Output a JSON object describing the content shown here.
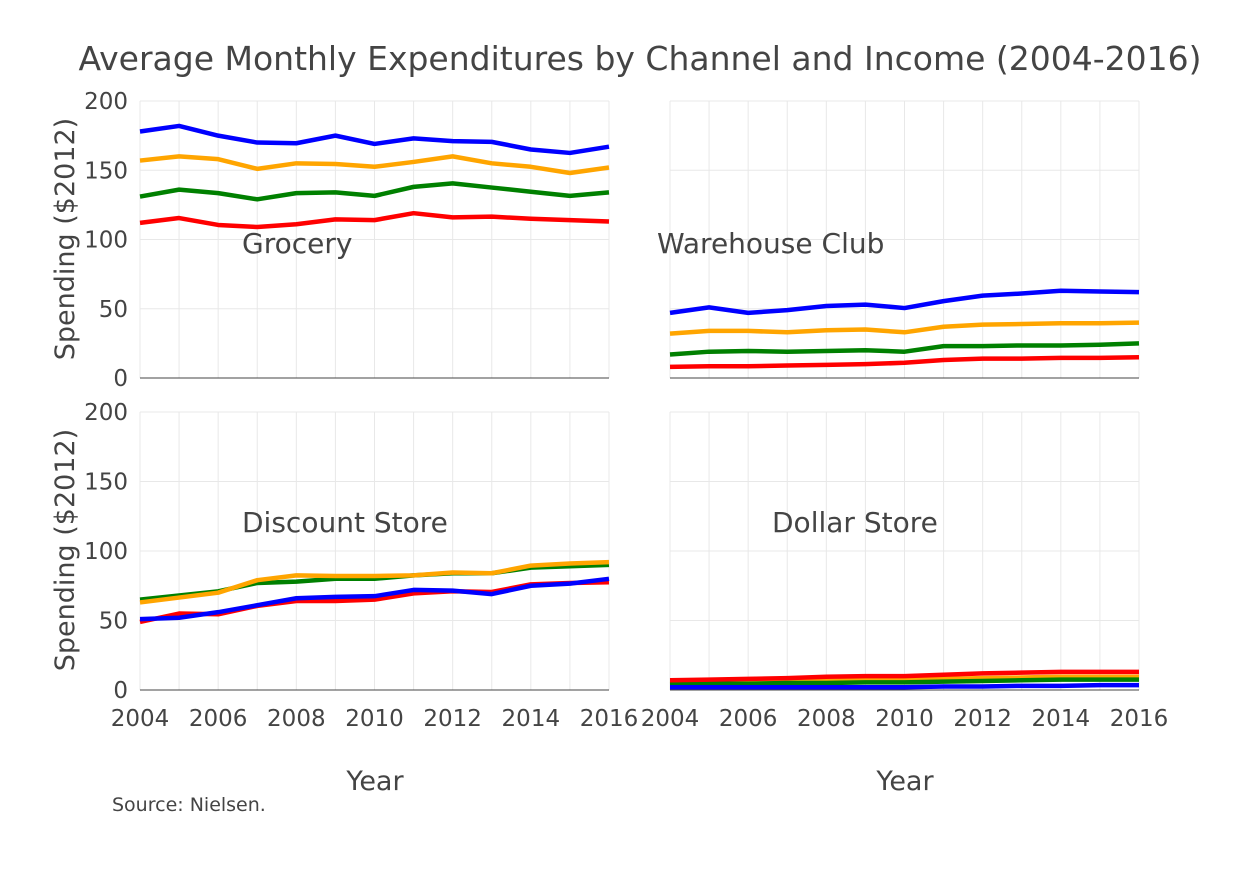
{
  "chart_data": {
    "type": "line",
    "title": "Average Monthly Expenditures by Channel and Income (2004-2016)",
    "xlabel": "Year",
    "ylabel": "Spending ($2012)",
    "source": "Source: Nielsen.",
    "x": [
      2004,
      2005,
      2006,
      2007,
      2008,
      2009,
      2010,
      2011,
      2012,
      2013,
      2014,
      2015,
      2016
    ],
    "xlim": [
      2004,
      2016
    ],
    "ylim": [
      0,
      200
    ],
    "xticks": [
      "2004",
      "2006",
      "2008",
      "2010",
      "2012",
      "2014",
      "2016"
    ],
    "yticks": [
      "0",
      "50",
      "100",
      "150",
      "200"
    ],
    "grid": true,
    "legend": false,
    "panels": [
      {
        "label": "Grocery",
        "series": [
          {
            "color": "#0000ff",
            "values": [
              178,
              182,
              175,
              170,
              169.5,
              175,
              169,
              173,
              171,
              170.5,
              165,
              162.5,
              167
            ]
          },
          {
            "color": "#ffa500",
            "values": [
              157,
              160,
              158,
              151,
              155,
              154.5,
              152.5,
              156,
              160,
              155,
              152.5,
              148,
              152
            ]
          },
          {
            "color": "#008000",
            "values": [
              131,
              136,
              133.5,
              129,
              133.5,
              134,
              131.5,
              138,
              140.5,
              137.5,
              134.5,
              131.5,
              134
            ]
          },
          {
            "color": "#ff0000",
            "values": [
              112,
              115.5,
              110.5,
              109,
              111,
              114.5,
              114,
              119,
              116,
              116.5,
              115,
              114,
              113
            ]
          }
        ]
      },
      {
        "label": "Warehouse Club",
        "series": [
          {
            "color": "#0000ff",
            "values": [
              47,
              51,
              47,
              49,
              52,
              53,
              50.5,
              55.5,
              59.5,
              61,
              63,
              62.5,
              62
            ]
          },
          {
            "color": "#ffa500",
            "values": [
              32,
              34,
              34,
              33,
              34.5,
              35,
              33,
              37,
              38.5,
              39,
              39.5,
              39.5,
              40
            ]
          },
          {
            "color": "#008000",
            "values": [
              17,
              19,
              19.5,
              19,
              19.5,
              20,
              19,
              23,
              23,
              23.5,
              23.5,
              24,
              25
            ]
          },
          {
            "color": "#ff0000",
            "values": [
              8,
              8.5,
              8.5,
              9,
              9.5,
              10,
              11,
              13,
              14,
              14,
              14.5,
              14.5,
              15
            ]
          }
        ]
      },
      {
        "label": "Discount Store",
        "series": [
          {
            "color": "#008000",
            "values": [
              65,
              68,
              71,
              77,
              78,
              80,
              80,
              82.5,
              84,
              84,
              88,
              89,
              90
            ]
          },
          {
            "color": "#ffa500",
            "values": [
              63,
              66.5,
              70,
              79,
              82.5,
              82,
              82,
              82.5,
              84.5,
              84,
              89.5,
              91,
              92
            ]
          },
          {
            "color": "#ff0000",
            "values": [
              49,
              55,
              54.5,
              60.5,
              64,
              64,
              65,
              69.5,
              71,
              70.5,
              76,
              77,
              77.5
            ]
          },
          {
            "color": "#0000ff",
            "values": [
              51,
              52,
              56,
              61,
              66,
              67,
              67.5,
              72,
              71.5,
              69,
              75,
              76.5,
              80
            ]
          }
        ]
      },
      {
        "label": "Dollar Store",
        "series": [
          {
            "color": "#ffa500",
            "values": [
              5,
              5.5,
              6,
              6,
              6.5,
              7,
              7,
              8,
              8.5,
              9,
              9.5,
              9.5,
              9.5
            ]
          },
          {
            "color": "#008000",
            "values": [
              4,
              4.5,
              4.5,
              5,
              5,
              5.5,
              5.5,
              6,
              6.5,
              7,
              7.5,
              7.5,
              7.5
            ]
          },
          {
            "color": "#ff0000",
            "values": [
              7,
              7.5,
              8,
              8.5,
              9.5,
              10,
              10,
              11,
              12,
              12.5,
              13,
              13,
              13
            ]
          },
          {
            "color": "#0000ff",
            "values": [
              2,
              2,
              2,
              2,
              2,
              2,
              2,
              2.5,
              2.5,
              3,
              3,
              3.5,
              3.5
            ]
          }
        ]
      }
    ]
  }
}
